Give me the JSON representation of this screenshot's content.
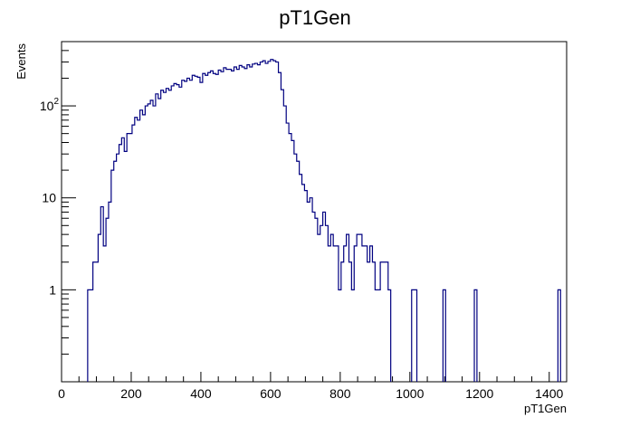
{
  "chart_data": {
    "type": "histogram",
    "title": "pT1Gen",
    "xlabel": "pT1Gen",
    "ylabel": "Events",
    "xlim": [
      0,
      1450
    ],
    "ylim": [
      0.1,
      500
    ],
    "yscale": "log",
    "grid": false,
    "legend": "none",
    "line_color": "#000080",
    "bin_width": 7.5,
    "x_ticks": [
      {
        "value": 0,
        "label": "0"
      },
      {
        "value": 200,
        "label": "200"
      },
      {
        "value": 400,
        "label": "400"
      },
      {
        "value": 600,
        "label": "600"
      },
      {
        "value": 800,
        "label": "800"
      },
      {
        "value": 1000,
        "label": "1000"
      },
      {
        "value": 1200,
        "label": "1200"
      },
      {
        "value": 1400,
        "label": "1400"
      }
    ],
    "y_ticks": [
      {
        "value": 1,
        "base": "1",
        "exp": ""
      },
      {
        "value": 10,
        "base": "10",
        "exp": ""
      },
      {
        "value": 100,
        "base": "10",
        "exp": "2"
      }
    ],
    "bins": [
      [
        75,
        1
      ],
      [
        82.5,
        1
      ],
      [
        90,
        2
      ],
      [
        97.5,
        2
      ],
      [
        105,
        4
      ],
      [
        112.5,
        8
      ],
      [
        120,
        3
      ],
      [
        127.5,
        6
      ],
      [
        135,
        9
      ],
      [
        142.5,
        20
      ],
      [
        150,
        25
      ],
      [
        157.5,
        30
      ],
      [
        165,
        38
      ],
      [
        172.5,
        45
      ],
      [
        180,
        32
      ],
      [
        187.5,
        50
      ],
      [
        195,
        50
      ],
      [
        202.5,
        62
      ],
      [
        210,
        75
      ],
      [
        217.5,
        70
      ],
      [
        225,
        90
      ],
      [
        232.5,
        80
      ],
      [
        240,
        100
      ],
      [
        247.5,
        105
      ],
      [
        255,
        115
      ],
      [
        262.5,
        100
      ],
      [
        270,
        135
      ],
      [
        277.5,
        120
      ],
      [
        285,
        148
      ],
      [
        292.5,
        140
      ],
      [
        300,
        155
      ],
      [
        307.5,
        148
      ],
      [
        315,
        165
      ],
      [
        322.5,
        175
      ],
      [
        330,
        170
      ],
      [
        337.5,
        160
      ],
      [
        345,
        190
      ],
      [
        352.5,
        185
      ],
      [
        360,
        200
      ],
      [
        367.5,
        190
      ],
      [
        375,
        215
      ],
      [
        382.5,
        210
      ],
      [
        390,
        205
      ],
      [
        397.5,
        180
      ],
      [
        405,
        225
      ],
      [
        412.5,
        215
      ],
      [
        420,
        230
      ],
      [
        427.5,
        240
      ],
      [
        435,
        225
      ],
      [
        442.5,
        220
      ],
      [
        450,
        245
      ],
      [
        457.5,
        235
      ],
      [
        465,
        260
      ],
      [
        472.5,
        250
      ],
      [
        480,
        250
      ],
      [
        487.5,
        240
      ],
      [
        495,
        265
      ],
      [
        502.5,
        250
      ],
      [
        510,
        275
      ],
      [
        517.5,
        265
      ],
      [
        525,
        255
      ],
      [
        532.5,
        280
      ],
      [
        540,
        265
      ],
      [
        547.5,
        285
      ],
      [
        555,
        290
      ],
      [
        562.5,
        280
      ],
      [
        570,
        300
      ],
      [
        577.5,
        310
      ],
      [
        585,
        290
      ],
      [
        592.5,
        305
      ],
      [
        600,
        320
      ],
      [
        607.5,
        310
      ],
      [
        615,
        300
      ],
      [
        622.5,
        230
      ],
      [
        630,
        150
      ],
      [
        637.5,
        100
      ],
      [
        645,
        65
      ],
      [
        652.5,
        50
      ],
      [
        660,
        42
      ],
      [
        667.5,
        30
      ],
      [
        675,
        25
      ],
      [
        682.5,
        18
      ],
      [
        690,
        14
      ],
      [
        697.5,
        12
      ],
      [
        705,
        9
      ],
      [
        712.5,
        10
      ],
      [
        720,
        7
      ],
      [
        727.5,
        6
      ],
      [
        735,
        4
      ],
      [
        742.5,
        5
      ],
      [
        750,
        7
      ],
      [
        757.5,
        5
      ],
      [
        765,
        3
      ],
      [
        772.5,
        4
      ],
      [
        780,
        3
      ],
      [
        787.5,
        3
      ],
      [
        795,
        1
      ],
      [
        802.5,
        2
      ],
      [
        810,
        3
      ],
      [
        817.5,
        4
      ],
      [
        825,
        2
      ],
      [
        832.5,
        1
      ],
      [
        840,
        3
      ],
      [
        847.5,
        4
      ],
      [
        855,
        4
      ],
      [
        862.5,
        3
      ],
      [
        870,
        3
      ],
      [
        877.5,
        2
      ],
      [
        885,
        3
      ],
      [
        892.5,
        2
      ],
      [
        900,
        1
      ],
      [
        907.5,
        1
      ],
      [
        915,
        2
      ],
      [
        922.5,
        2
      ],
      [
        930,
        2
      ],
      [
        937.5,
        1
      ],
      [
        1005,
        1
      ],
      [
        1012.5,
        1
      ],
      [
        1095,
        1
      ],
      [
        1185,
        1
      ],
      [
        1425,
        1
      ]
    ]
  }
}
